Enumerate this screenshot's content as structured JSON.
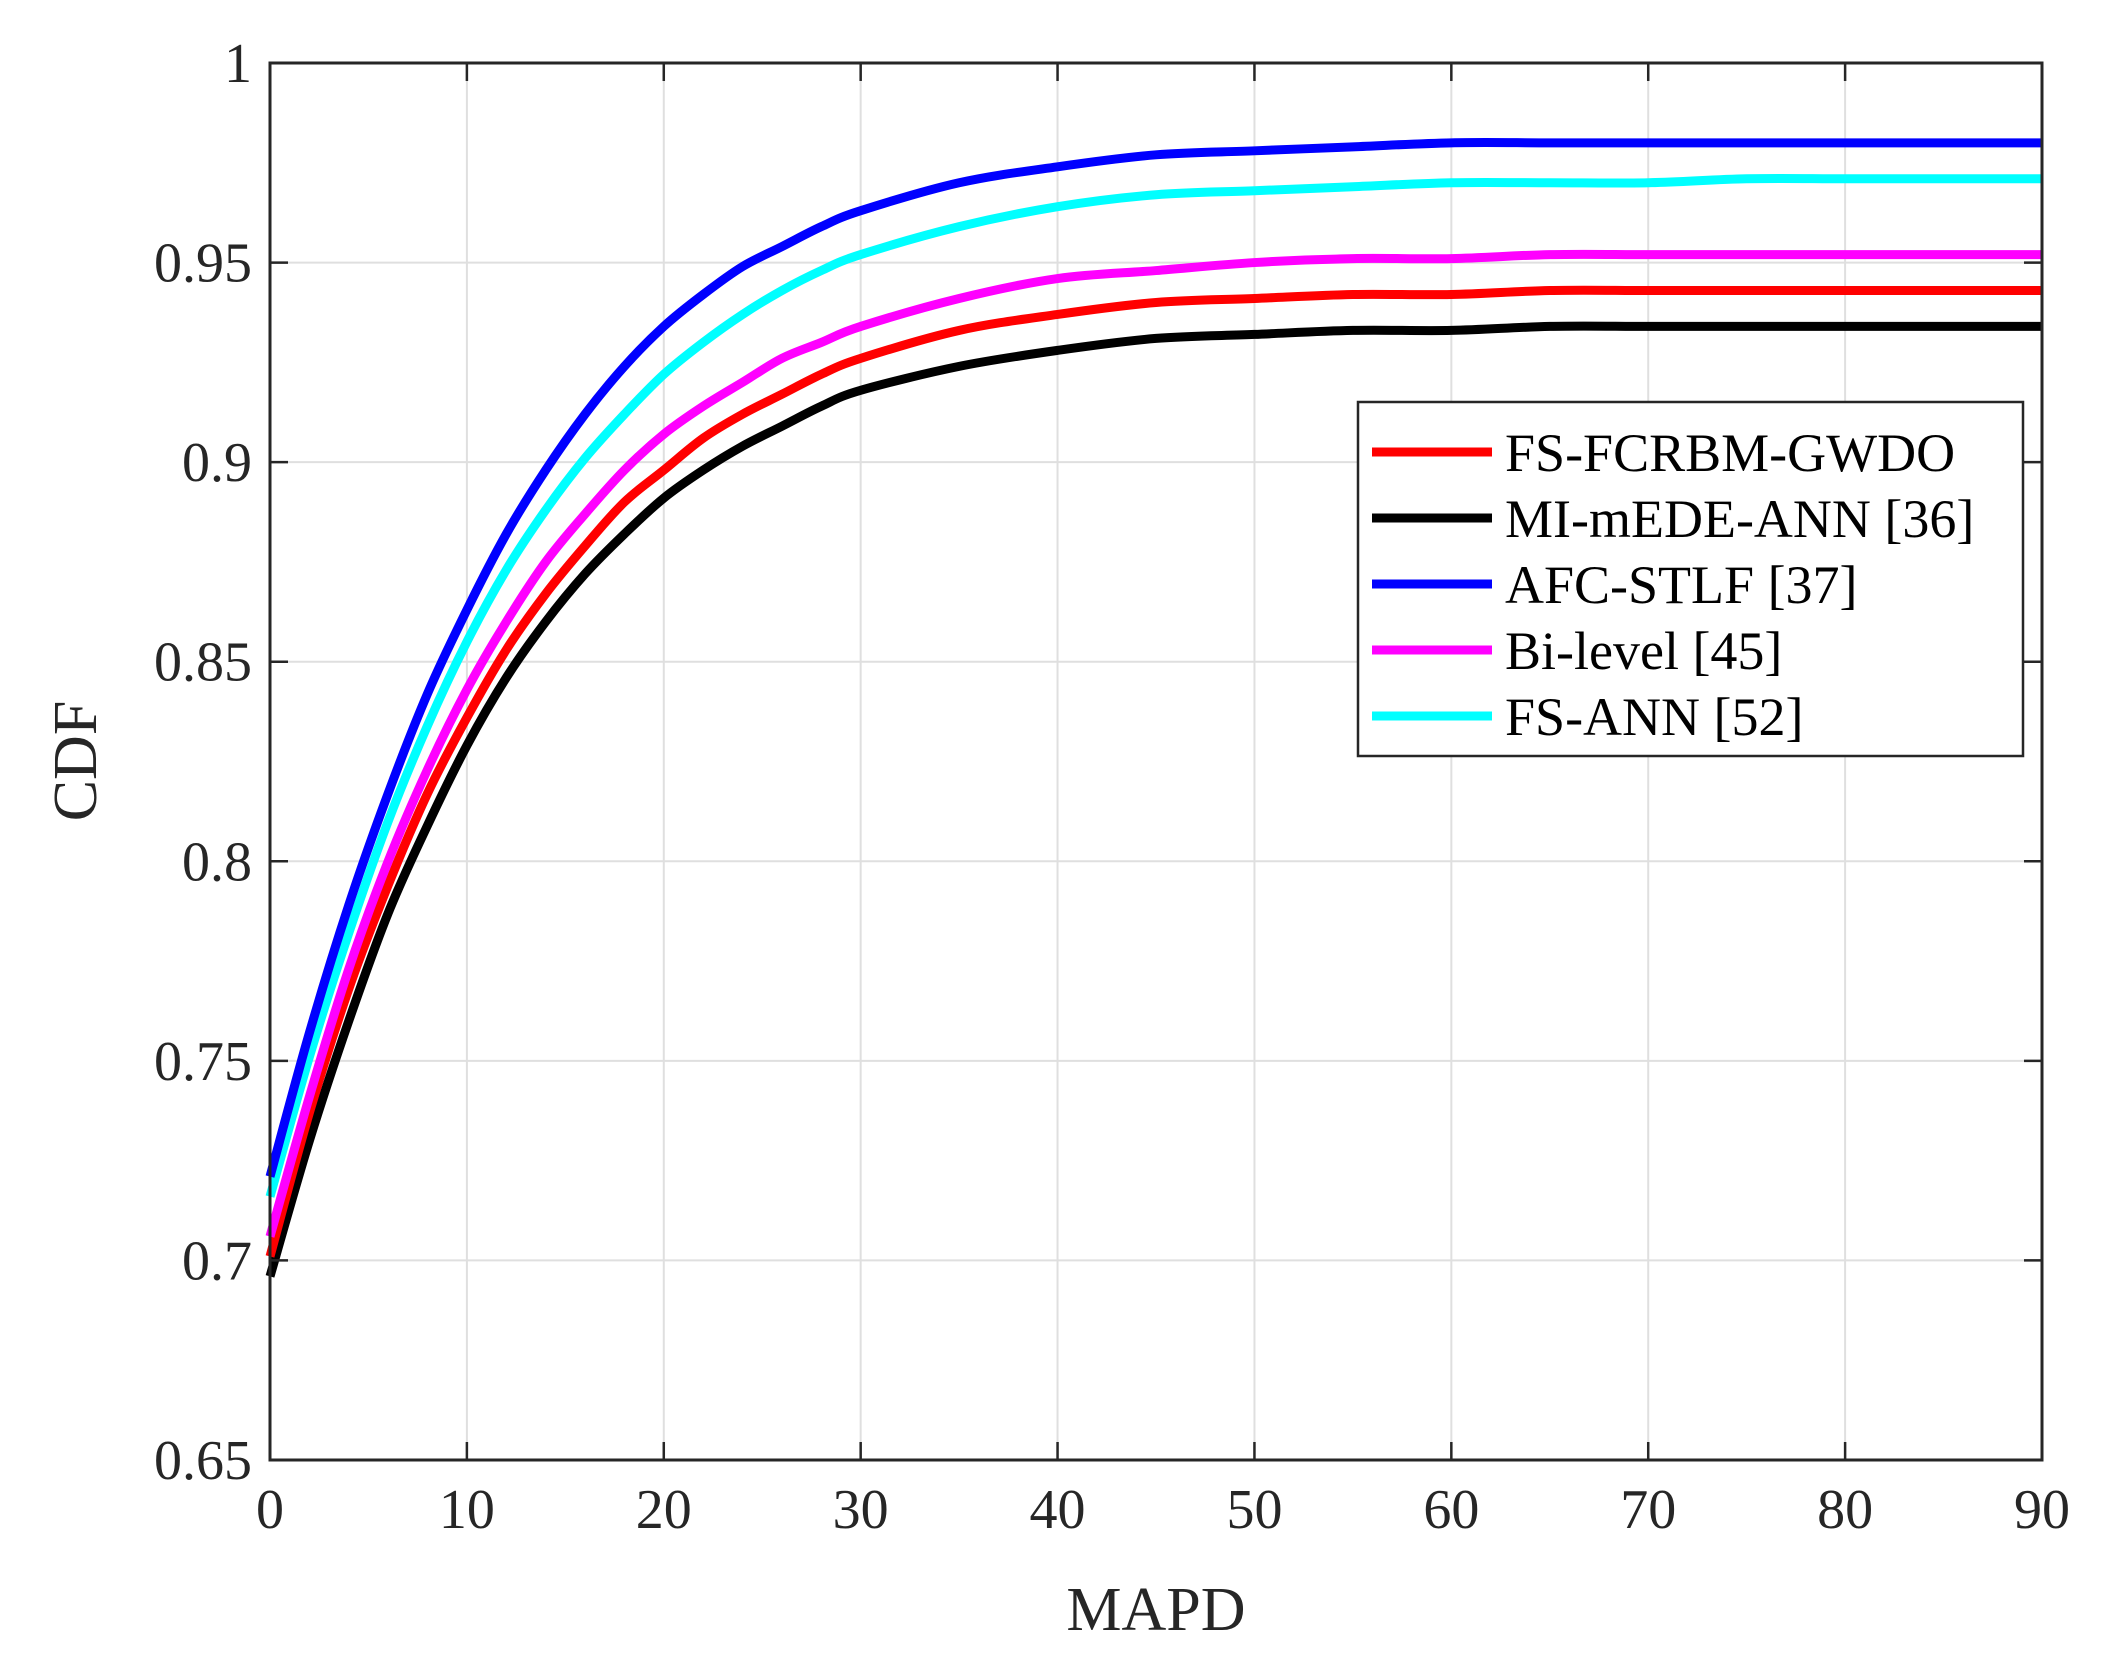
{
  "chart_data": {
    "type": "line",
    "title": "",
    "xlabel": "MAPD",
    "ylabel": "CDF",
    "xlim": [
      0,
      90
    ],
    "ylim": [
      0.65,
      1
    ],
    "xticks": [
      0,
      10,
      20,
      30,
      40,
      50,
      60,
      70,
      80,
      90
    ],
    "xtick_labels": [
      "0",
      "10",
      "20",
      "30",
      "40",
      "50",
      "60",
      "70",
      "80",
      "90"
    ],
    "yticks": [
      0.65,
      0.7,
      0.75,
      0.8,
      0.85,
      0.9,
      0.95,
      1
    ],
    "ytick_labels": [
      "0.65",
      "0.7",
      "0.75",
      "0.8",
      "0.85",
      "0.9",
      "0.95",
      "1"
    ],
    "grid": true,
    "legend_position": "right-middle",
    "x": [
      0,
      2,
      4,
      6,
      8,
      10,
      12,
      14,
      16,
      18,
      20,
      22,
      24,
      26,
      28,
      30,
      35,
      40,
      45,
      50,
      55,
      60,
      65,
      70,
      75,
      80,
      85,
      90
    ],
    "series": [
      {
        "name": "FS-FCRBM-GWDO",
        "color": "#ff0000",
        "values": [
          0.701,
          0.737,
          0.768,
          0.794,
          0.817,
          0.836,
          0.853,
          0.867,
          0.879,
          0.89,
          0.898,
          0.906,
          0.912,
          0.917,
          0.922,
          0.926,
          0.933,
          0.937,
          0.94,
          0.941,
          0.942,
          0.942,
          0.943,
          0.943,
          0.943,
          0.943,
          0.943,
          0.943
        ]
      },
      {
        "name": "MI-mEDE-ANN [36]",
        "color": "#000000",
        "values": [
          0.696,
          0.73,
          0.76,
          0.787,
          0.809,
          0.829,
          0.846,
          0.86,
          0.872,
          0.882,
          0.891,
          0.898,
          0.904,
          0.909,
          0.914,
          0.918,
          0.924,
          0.928,
          0.931,
          0.932,
          0.933,
          0.933,
          0.934,
          0.934,
          0.934,
          0.934,
          0.934,
          0.934
        ]
      },
      {
        "name": "AFC-STLF [37]",
        "color": "#0000ff",
        "values": [
          0.721,
          0.757,
          0.789,
          0.817,
          0.842,
          0.863,
          0.882,
          0.898,
          0.912,
          0.924,
          0.934,
          0.942,
          0.949,
          0.954,
          0.959,
          0.963,
          0.97,
          0.974,
          0.977,
          0.978,
          0.979,
          0.98,
          0.98,
          0.98,
          0.98,
          0.98,
          0.98,
          0.98
        ]
      },
      {
        "name": "Bi-level [45]",
        "color": "#ff00ff",
        "values": [
          0.706,
          0.741,
          0.773,
          0.8,
          0.823,
          0.843,
          0.86,
          0.875,
          0.887,
          0.898,
          0.907,
          0.914,
          0.92,
          0.926,
          0.93,
          0.934,
          0.941,
          0.946,
          0.948,
          0.95,
          0.951,
          0.951,
          0.952,
          0.952,
          0.952,
          0.952,
          0.952,
          0.952
        ]
      },
      {
        "name": "FS-ANN [52]",
        "color": "#00ffff",
        "values": [
          0.716,
          0.751,
          0.782,
          0.81,
          0.834,
          0.855,
          0.873,
          0.888,
          0.901,
          0.912,
          0.922,
          0.93,
          0.937,
          0.943,
          0.948,
          0.952,
          0.959,
          0.964,
          0.967,
          0.968,
          0.969,
          0.97,
          0.97,
          0.97,
          0.971,
          0.971,
          0.971,
          0.971
        ]
      }
    ]
  }
}
